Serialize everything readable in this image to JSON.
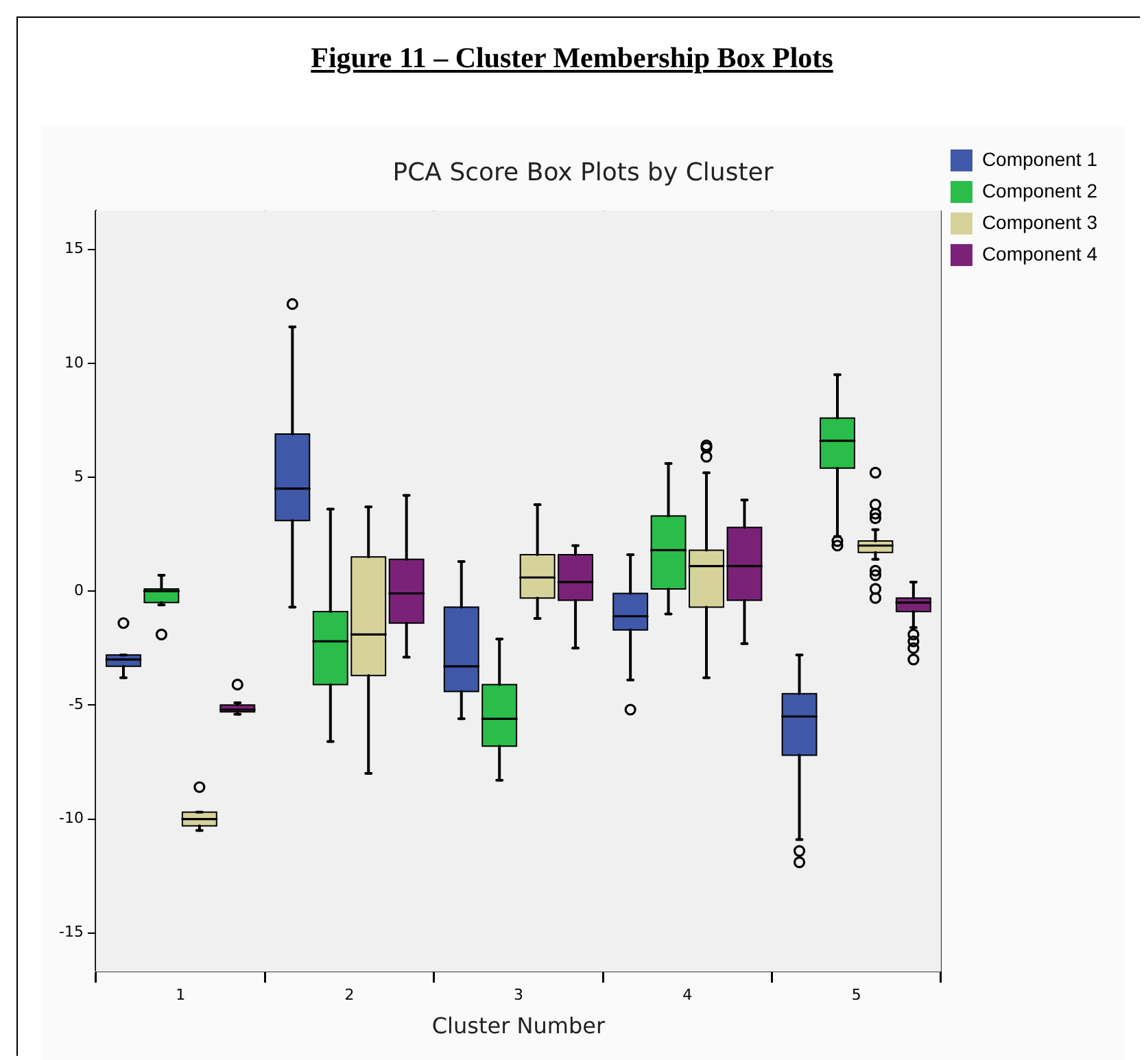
{
  "chart_data": {
    "type": "box",
    "title": "Figure 11 – Cluster Membership Box Plots",
    "subtitle": "PCA Score Box Plots by Cluster",
    "xlabel": "Cluster Number",
    "categories": [
      "1",
      "2",
      "3",
      "4",
      "5"
    ],
    "ylim": [
      -16.7,
      16.7
    ],
    "yticks": [
      -15,
      -10,
      -5,
      0,
      5,
      10,
      15
    ],
    "grid": "x",
    "legend": "right",
    "series": [
      {
        "name": "Component 1",
        "color": "#3f58a8",
        "boxes": [
          {
            "low": -3.8,
            "q1": -3.3,
            "median": -3.0,
            "q3": -2.8,
            "high": -2.8,
            "outliers": [
              -1.4
            ]
          },
          {
            "low": -0.7,
            "q1": 3.1,
            "median": 4.5,
            "q3": 6.9,
            "high": 11.6,
            "outliers": [
              12.6
            ]
          },
          {
            "low": -5.6,
            "q1": -4.4,
            "median": -3.3,
            "q3": -0.7,
            "high": 1.3
          },
          {
            "low": -3.9,
            "q1": -1.7,
            "median": -1.1,
            "q3": -0.1,
            "high": 1.6,
            "outliers": [
              -5.2
            ]
          },
          {
            "low": -10.9,
            "q1": -7.2,
            "median": -5.5,
            "q3": -4.5,
            "high": -2.8,
            "outliers": [
              -11.4,
              -11.9
            ]
          }
        ]
      },
      {
        "name": "Component 2",
        "color": "#2bbd4a",
        "boxes": [
          {
            "low": -0.6,
            "q1": -0.5,
            "median": 0.0,
            "q3": 0.1,
            "high": 0.7,
            "outliers": [
              -1.9
            ]
          },
          {
            "low": -6.6,
            "q1": -4.1,
            "median": -2.2,
            "q3": -0.9,
            "high": 3.6
          },
          {
            "low": -8.3,
            "q1": -6.8,
            "median": -5.6,
            "q3": -4.1,
            "high": -2.1
          },
          {
            "low": -1.0,
            "q1": 0.1,
            "median": 1.8,
            "q3": 3.3,
            "high": 5.6
          },
          {
            "low": 2.4,
            "q1": 5.4,
            "median": 6.6,
            "q3": 7.6,
            "high": 9.5,
            "outliers": [
              2.2,
              2.0
            ]
          }
        ]
      },
      {
        "name": "Component 3",
        "color": "#d6d39a",
        "boxes": [
          {
            "low": -10.5,
            "q1": -10.3,
            "median": -10.0,
            "q3": -9.7,
            "high": -9.7,
            "outliers": [
              -8.6
            ]
          },
          {
            "low": -8.0,
            "q1": -3.7,
            "median": -1.9,
            "q3": 1.5,
            "high": 3.7
          },
          {
            "low": -1.2,
            "q1": -0.3,
            "median": 0.6,
            "q3": 1.6,
            "high": 3.8
          },
          {
            "low": -3.8,
            "q1": -0.7,
            "median": 1.1,
            "q3": 1.8,
            "high": 5.2,
            "outliers": [
              5.9,
              6.3,
              6.4
            ]
          },
          {
            "low": 1.4,
            "q1": 1.7,
            "median": 2.0,
            "q3": 2.2,
            "high": 2.7,
            "outliers": [
              3.2,
              3.4,
              3.8,
              5.2,
              0.9,
              0.7,
              0.1,
              -0.3
            ]
          }
        ]
      },
      {
        "name": "Component 4",
        "color": "#7a2277",
        "boxes": [
          {
            "low": -5.4,
            "q1": -5.3,
            "median": -5.2,
            "q3": -5.0,
            "high": -4.9,
            "outliers": [
              -4.1
            ]
          },
          {
            "low": -2.9,
            "q1": -1.4,
            "median": -0.1,
            "q3": 1.4,
            "high": 4.2
          },
          {
            "low": -2.5,
            "q1": -0.4,
            "median": 0.4,
            "q3": 1.6,
            "high": 2.0
          },
          {
            "low": -2.3,
            "q1": -0.4,
            "median": 1.1,
            "q3": 2.8,
            "high": 4.0
          },
          {
            "low": -1.6,
            "q1": -0.9,
            "median": -0.5,
            "q3": -0.3,
            "high": 0.4,
            "outliers": [
              -1.9,
              -2.2,
              -2.5,
              -3.0
            ]
          }
        ]
      }
    ]
  }
}
